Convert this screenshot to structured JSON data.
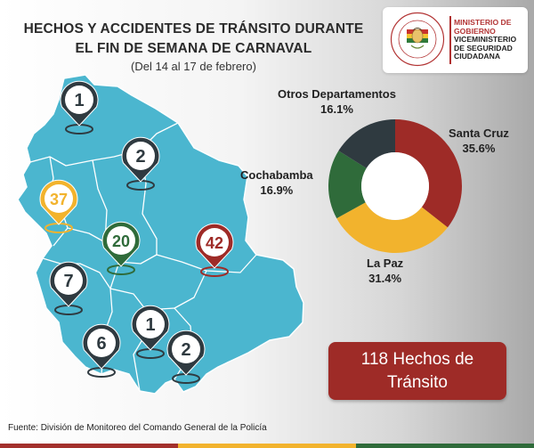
{
  "header": {
    "title_line1": "HECHOS Y ACCIDENTES DE TRÁNSITO DURANTE",
    "title_line2": "EL FIN DE SEMANA DE CARNAVAL",
    "subtitle": "(Del 14 al 17 de febrero)"
  },
  "logo": {
    "line1": "MINISTERIO DE",
    "line2": "GOBIERNO",
    "line3": "VICEMINISTERIO",
    "line4": "DE SEGURIDAD",
    "line5": "CIUDADANA",
    "seal_text": "MINISTERIO DE GOBIERNO · ESTADO PLURINACIONAL DE BOLIVIA"
  },
  "colors": {
    "map": "#4bb6cf",
    "santa_cruz": "#9e2b27",
    "la_paz": "#f2b32d",
    "cochabamba": "#2f6b3a",
    "otros": "#2f3a40",
    "total_box": "#9e2b27"
  },
  "map_markers": [
    {
      "value": "1",
      "color": "#2f3a40",
      "icon": "map-pin-icon"
    },
    {
      "value": "2",
      "color": "#2f3a40",
      "icon": "map-pin-icon"
    },
    {
      "value": "37",
      "color": "#f2b32d",
      "icon": "map-pin-icon"
    },
    {
      "value": "20",
      "color": "#2f6b3a",
      "icon": "map-pin-icon"
    },
    {
      "value": "42",
      "color": "#9e2b27",
      "icon": "map-pin-icon"
    },
    {
      "value": "7",
      "color": "#2f3a40",
      "icon": "map-pin-icon"
    },
    {
      "value": "1",
      "color": "#2f3a40",
      "icon": "map-pin-icon"
    },
    {
      "value": "6",
      "color": "#2f3a40",
      "icon": "map-pin-icon"
    },
    {
      "value": "2",
      "color": "#2f3a40",
      "icon": "map-pin-icon"
    }
  ],
  "chart_data": {
    "type": "pie",
    "hole": true,
    "series": [
      {
        "name": "Santa Cruz",
        "value": 35.6,
        "label": "35.6%",
        "color": "#9e2b27"
      },
      {
        "name": "La Paz",
        "value": 31.4,
        "label": "31.4%",
        "color": "#f2b32d"
      },
      {
        "name": "Cochabamba",
        "value": 16.9,
        "label": "16.9%",
        "color": "#2f6b3a"
      },
      {
        "name": "Otros Departamentos",
        "value": 16.1,
        "label": "16.1%",
        "color": "#2f3a40"
      }
    ]
  },
  "total": {
    "line1": "118 Hechos de",
    "line2": "Tránsito"
  },
  "source": "Fuente: División de Monitoreo del Comando General de la Policía",
  "bottom_bar_colors": [
    "#a3302c",
    "#f2b32d",
    "#2f6b3a"
  ]
}
